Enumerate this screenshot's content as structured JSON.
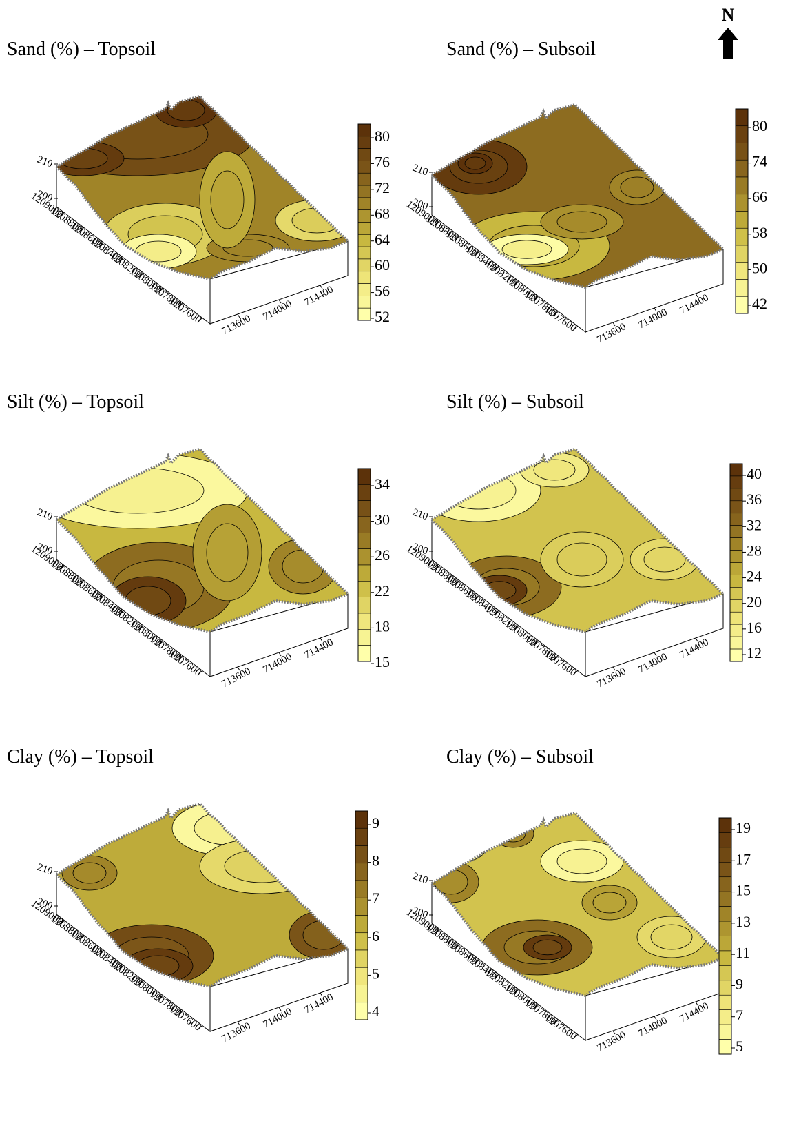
{
  "north": "N",
  "axes": {
    "z_ticks": [
      210,
      200
    ],
    "y_ticks": [
      1209000,
      1208800,
      1208600,
      1208400,
      1208200,
      1208000,
      1207800,
      1207600
    ],
    "x_ticks": [
      713600,
      714000,
      714400
    ]
  },
  "panels": [
    {
      "title": "Sand (%) – Topsoil",
      "colorbar_ticks": [
        80,
        76,
        72,
        68,
        64,
        60,
        56,
        52
      ]
    },
    {
      "title": "Sand (%) – Subsoil",
      "colorbar_ticks": [
        80,
        74,
        66,
        58,
        50,
        42
      ]
    },
    {
      "title": "Silt (%) – Topsoil",
      "colorbar_ticks": [
        34,
        30,
        26,
        22,
        18,
        15
      ]
    },
    {
      "title": "Silt (%) – Subsoil",
      "colorbar_ticks": [
        40,
        36,
        32,
        28,
        24,
        20,
        16,
        12
      ]
    },
    {
      "title": "Clay (%) – Topsoil",
      "colorbar_ticks": [
        9,
        8,
        7,
        6,
        5,
        4
      ]
    },
    {
      "title": "Clay (%) – Subsoil",
      "colorbar_ticks": [
        19,
        17,
        15,
        13,
        11,
        9,
        7,
        5
      ]
    }
  ]
}
